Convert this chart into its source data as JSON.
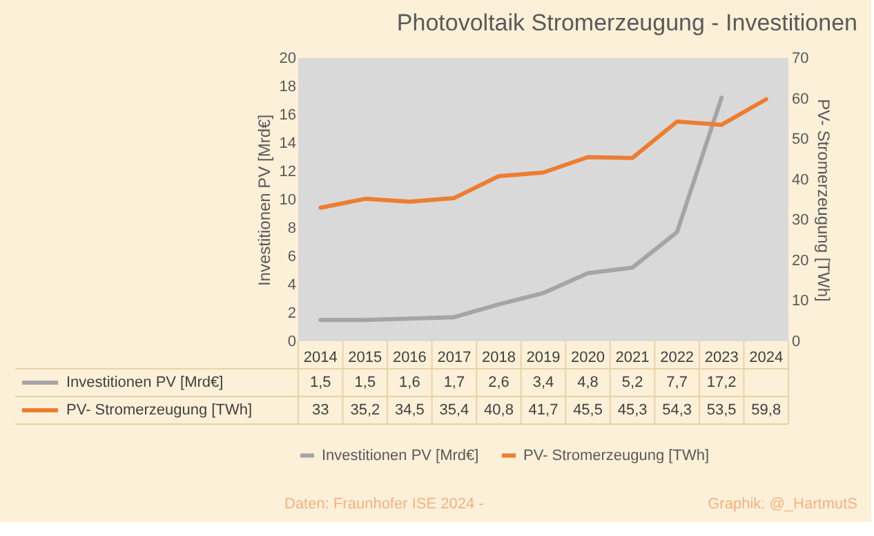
{
  "chart_data": {
    "type": "line",
    "title": "Photovoltaik Stromerzeugung - Investitionen",
    "categories": [
      "2014",
      "2015",
      "2016",
      "2017",
      "2018",
      "2019",
      "2020",
      "2021",
      "2022",
      "2023",
      "2024"
    ],
    "series": [
      {
        "name": "Investitionen PV [Mrd€]",
        "color": "#a5a5a5",
        "values": [
          1.5,
          1.5,
          1.6,
          1.7,
          2.6,
          3.4,
          4.8,
          5.2,
          7.7,
          17.2,
          null
        ],
        "value_labels": [
          "1,5",
          "1,5",
          "1,6",
          "1,7",
          "2,6",
          "3,4",
          "4,8",
          "5,2",
          "7,7",
          "17,2",
          null
        ]
      },
      {
        "name": "PV- Stromerzeugung [TWh]",
        "color": "#ed7d31",
        "axis": "y2",
        "values": [
          33,
          35.2,
          34.5,
          35.4,
          40.8,
          41.7,
          45.5,
          45.3,
          54.3,
          53.5,
          59.8
        ],
        "value_labels": [
          "33",
          "35,2",
          "34,5",
          "35,4",
          "40,8",
          "41,7",
          "45,5",
          "45,3",
          "54,3",
          "53,5",
          "59,8"
        ]
      }
    ],
    "ylabel": "Investitionen PV [Mrd€]",
    "y2label": "PV- Stromerzeugung  [TWh]",
    "ylim": [
      0,
      20
    ],
    "yticks": [
      0,
      2,
      4,
      6,
      8,
      10,
      12,
      14,
      16,
      18,
      20
    ],
    "y2lim": [
      0,
      70
    ],
    "y2ticks": [
      0,
      10,
      20,
      30,
      40,
      50,
      60,
      70
    ],
    "legend": "bottom",
    "grid": false,
    "annotations": [
      "Daten: Fraunhofer ISE 2024 -",
      "Graphik: @_HartmutS"
    ]
  }
}
